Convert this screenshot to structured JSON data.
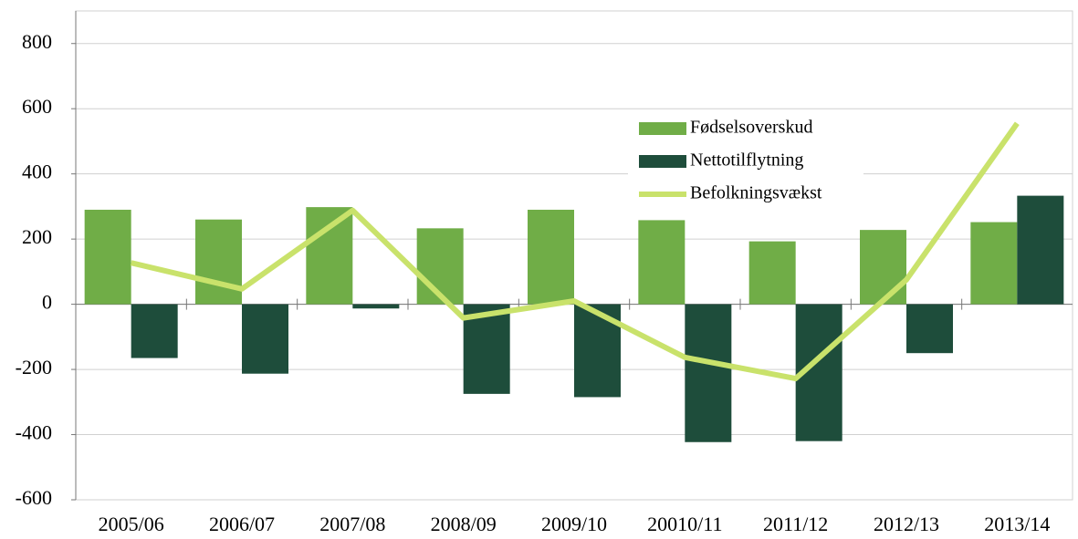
{
  "chart_data": {
    "type": "bar",
    "categories": [
      "2005/06",
      "2006/07",
      "2007/08",
      "2008/09",
      "2009/10",
      "20010/11",
      "2011/12",
      "2012/13",
      "2013/14"
    ],
    "series": [
      {
        "name": "Fødselsoverskud",
        "type": "bar",
        "color": "#70ad47",
        "values": [
          290,
          260,
          298,
          233,
          290,
          258,
          193,
          228,
          252
        ]
      },
      {
        "name": "Nettotilflytning",
        "type": "bar",
        "color": "#1e4d3b",
        "values": [
          -165,
          -213,
          -13,
          -275,
          -285,
          -423,
          -420,
          -150,
          333
        ]
      },
      {
        "name": "Befolkningsvækst",
        "type": "line",
        "color": "#c9e26b",
        "values": [
          127,
          47,
          288,
          -42,
          10,
          -163,
          -228,
          75,
          555
        ]
      }
    ],
    "ylim": [
      -600,
      900
    ],
    "yticks": [
      -600,
      -400,
      -200,
      0,
      200,
      400,
      600,
      800
    ],
    "grid": true
  }
}
